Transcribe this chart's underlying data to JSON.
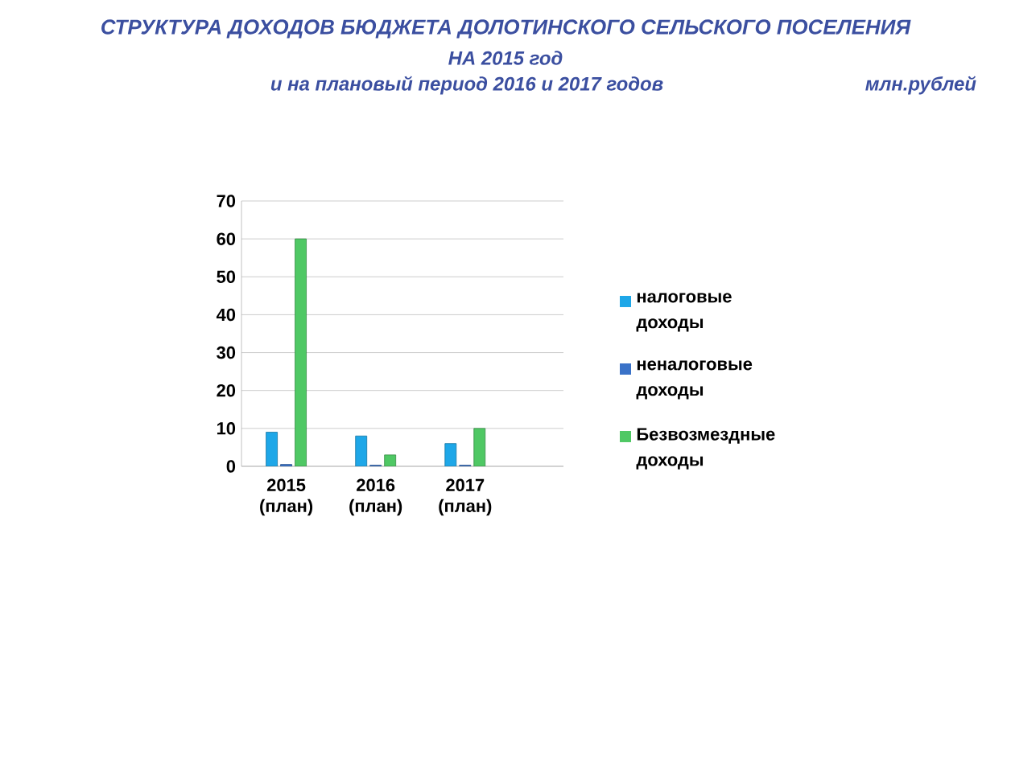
{
  "chart_data": {
    "type": "bar",
    "title": "СТРУКТУРА ДОХОДОВ БЮДЖЕТА ДОЛОТИНСКОГО СЕЛЬСКОГО  ПОСЕЛЕНИЯ",
    "subtitle": "НА 2015 год",
    "annotations": [
      "и на плановый период 2016 и 2017 годов",
      "млн.рублей"
    ],
    "categories": [
      "2015 (план)",
      "2016 (план)",
      "2017 (план)"
    ],
    "series": [
      {
        "name": "налоговые доходы",
        "color": "#1ea7e8",
        "values": [
          9,
          8,
          6
        ]
      },
      {
        "name": "неналоговые доходы",
        "color": "#3a72c8",
        "values": [
          0.5,
          0.3,
          0.3
        ]
      },
      {
        "name": "Безвозмездные доходы",
        "color": "#4fc864",
        "values": [
          60,
          3,
          10
        ]
      }
    ],
    "ylim": [
      0,
      70
    ],
    "yticks": [
      0,
      10,
      20,
      30,
      40,
      50,
      60,
      70
    ],
    "grid": "y",
    "legend": "right"
  }
}
